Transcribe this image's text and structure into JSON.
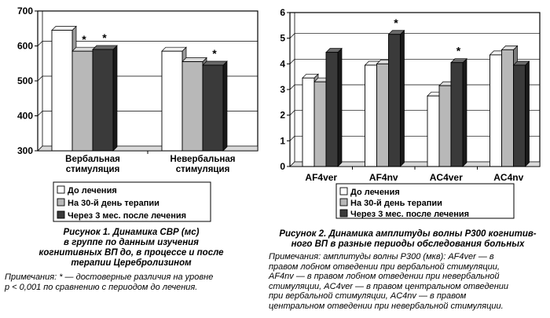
{
  "colors": {
    "before": "#ffffff",
    "day30": "#b8b8b8",
    "month3": "#3a3a3a",
    "top_face_before": "#f2f2f2",
    "top_face_day30": "#dcdcdc",
    "top_face_month3": "#6a6a6a",
    "side_before": "#9a9a9a",
    "side_day30": "#7a7a7a",
    "side_month3": "#1a1a1a"
  },
  "chart_data": [
    {
      "type": "bar",
      "categories": [
        "Вербальная стимуляция",
        "Невербальная стимуляция"
      ],
      "category_lines": [
        [
          "Вербальная",
          "стимуляция"
        ],
        [
          "Невербальная",
          "стимуляция"
        ]
      ],
      "series": [
        {
          "name": "До лечения",
          "values": [
            645,
            585
          ]
        },
        {
          "name": "На 30-й день терапии",
          "values": [
            585,
            555
          ]
        },
        {
          "name": "Через 3 мес. после лечения",
          "values": [
            590,
            545
          ]
        }
      ],
      "significance": [
        [
          "",
          "*",
          "*"
        ],
        [
          "",
          "",
          "*"
        ]
      ],
      "ylim": [
        300,
        700
      ],
      "yticks": [
        "300",
        "400",
        "500",
        "600",
        "700"
      ],
      "legend_position": "bottom",
      "grid": true,
      "caption": "Рисунок 1. Динамика СВР (мс) в группе по данным изучения когнитивных ВП до, в процессе и после терапии Церебролизином",
      "caption_lines": [
        "Рисунок 1. Динамика СВР (мс)",
        "в группе по данным изучения",
        "когнитивных ВП до, в процессе и после",
        "терапии Церебролизином"
      ],
      "note_lines": [
        "Примечания: * — достоверные различия на уровне",
        "р < 0,001 по сравнению с периодом до лечения."
      ]
    },
    {
      "type": "bar",
      "categories": [
        "AF4ver",
        "AF4nv",
        "AC4ver",
        "AC4nv"
      ],
      "series": [
        {
          "name": "До лечения",
          "values": [
            3.45,
            3.95,
            2.75,
            4.35
          ]
        },
        {
          "name": "На 30-й день терапии",
          "values": [
            3.3,
            4.0,
            3.15,
            4.55
          ]
        },
        {
          "name": "Через 3 мес. после лечения",
          "values": [
            4.45,
            5.15,
            4.05,
            3.95
          ]
        }
      ],
      "significance": [
        [
          "",
          "",
          ""
        ],
        [
          "",
          "",
          "*"
        ],
        [
          "",
          "",
          "*"
        ],
        [
          "",
          "",
          ""
        ]
      ],
      "ylim": [
        0,
        6
      ],
      "yticks": [
        "0",
        "1",
        "2",
        "3",
        "4",
        "5",
        "6"
      ],
      "legend_position": "bottom",
      "grid": true,
      "caption": "Рисунок 2. Динамика амплитуды волны Р300 когнитивного ВП в разные периоды обследования больных",
      "caption_lines": [
        "Рисунок 2. Динамика амплитуды волны Р300 когнитив-",
        "ного ВП в разные периоды обследования больных"
      ],
      "note_lines": [
        "Примечания: амплитуды волны Р300 (мкв): AF4ver — в",
        "правом лобном отведении при вербальной стимуляции,",
        "AF4nv — в правом лобном отведении при невербальной",
        "стимуляции, AC4ver — в правом центральном отведении",
        "при вербальной стимуляции, AC4nv — в правом",
        "центральном отведении при невербальной стимуляции."
      ]
    }
  ]
}
